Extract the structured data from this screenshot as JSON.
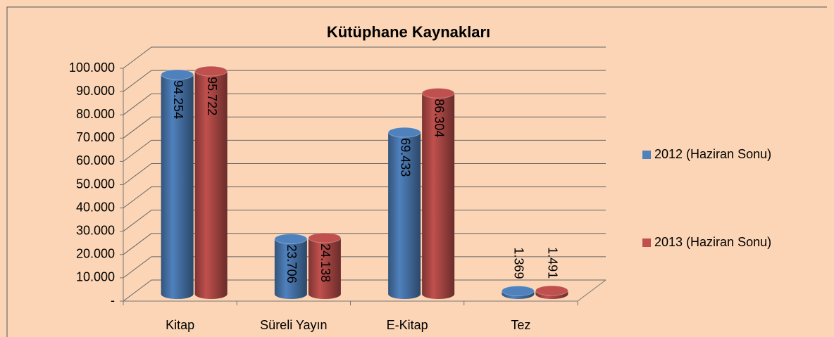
{
  "chart_data": {
    "type": "bar3d",
    "title": "Kütüphane Kaynakları",
    "categories": [
      "Kitap",
      "Süreli Yayın",
      "E-Kitap",
      "Tez"
    ],
    "series": [
      {
        "name": "2012 (Haziran Sonu)",
        "color": "#4f81bd",
        "values": [
          94254,
          23706,
          69433,
          1369
        ],
        "value_labels": [
          "94.254",
          "23.706",
          "69.433",
          "1.369"
        ]
      },
      {
        "name": "2013 (Haziran Sonu)",
        "color": "#c0504d",
        "values": [
          95722,
          24138,
          86304,
          1491
        ],
        "value_labels": [
          "95.722",
          "24.138",
          "86.304",
          "1.491"
        ]
      }
    ],
    "ylim": [
      0,
      100000
    ],
    "yticks": [
      {
        "value": 0,
        "label": "-"
      },
      {
        "value": 10000,
        "label": "10.000"
      },
      {
        "value": 20000,
        "label": "20.000"
      },
      {
        "value": 30000,
        "label": "30.000"
      },
      {
        "value": 40000,
        "label": "40.000"
      },
      {
        "value": 50000,
        "label": "50.000"
      },
      {
        "value": 60000,
        "label": "60.000"
      },
      {
        "value": 70000,
        "label": "70.000"
      },
      {
        "value": 80000,
        "label": "80.000"
      },
      {
        "value": 90000,
        "label": "90.000"
      },
      {
        "value": 100000,
        "label": "100.000"
      }
    ],
    "grid": true,
    "legend": "right"
  }
}
